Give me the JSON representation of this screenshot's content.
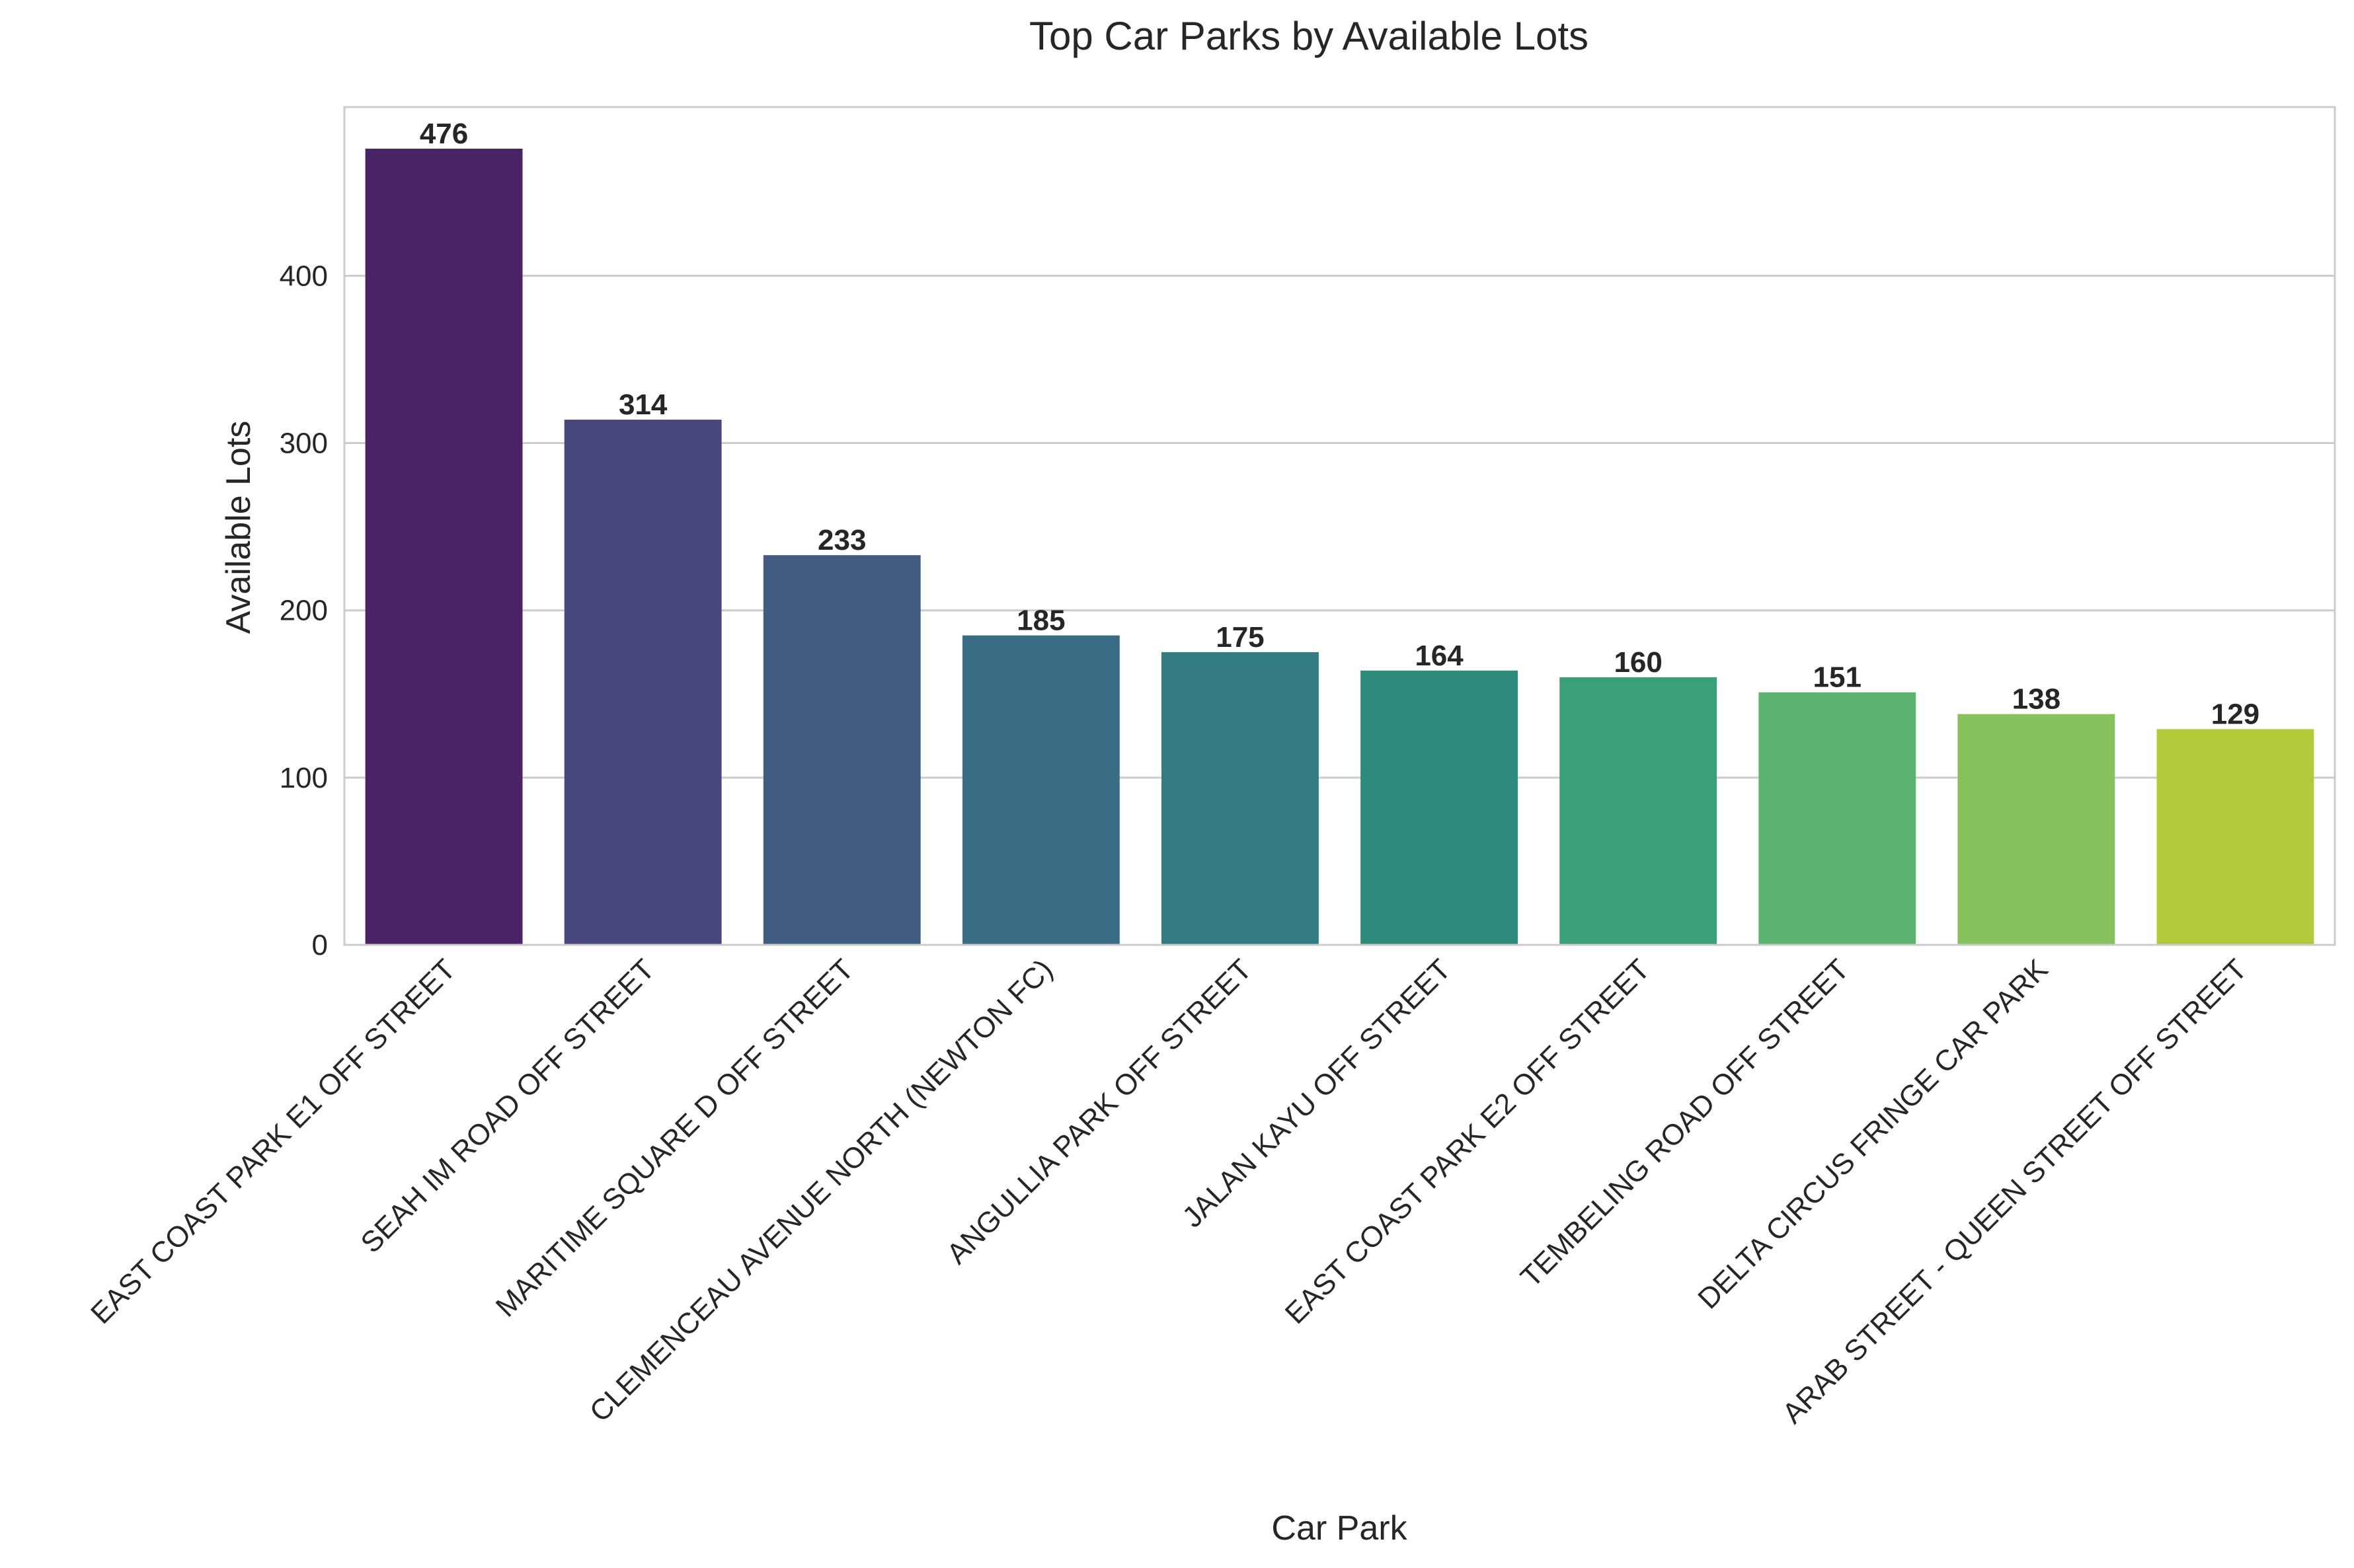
{
  "chart_data": {
    "type": "bar",
    "title": "Top Car Parks by Available Lots",
    "xlabel": "Car Park",
    "ylabel": "Available Lots",
    "ylim": [
      0,
      500
    ],
    "yticks": [
      0,
      100,
      200,
      300,
      400
    ],
    "grid": "horizontal",
    "legend": "none",
    "categories": [
      "EAST COAST PARK E1 OFF STREET",
      "SEAH IM ROAD OFF STREET",
      "MARITIME SQUARE D OFF STREET",
      "CLEMENCEAU AVENUE NORTH (NEWTON FC)",
      "ANGULLIA PARK OFF STREET",
      "JALAN KAYU OFF STREET",
      "EAST COAST PARK E2 OFF STREET",
      "TEMBELING ROAD OFF STREET",
      "DELTA CIRCUS FRINGE CAR PARK",
      "ARAB STREET - QUEEN STREET OFF STREET"
    ],
    "values": [
      476,
      314,
      233,
      185,
      175,
      164,
      160,
      151,
      138,
      129
    ],
    "data_labels": [
      "476",
      "314",
      "233",
      "185",
      "175",
      "164",
      "160",
      "151",
      "138",
      "129"
    ],
    "colors": [
      "#482466",
      "#48487c",
      "#425b81",
      "#396d85",
      "#327b82",
      "#2e8b7c",
      "#3ba077",
      "#5db470",
      "#86c25b",
      "#b2c93a"
    ]
  }
}
